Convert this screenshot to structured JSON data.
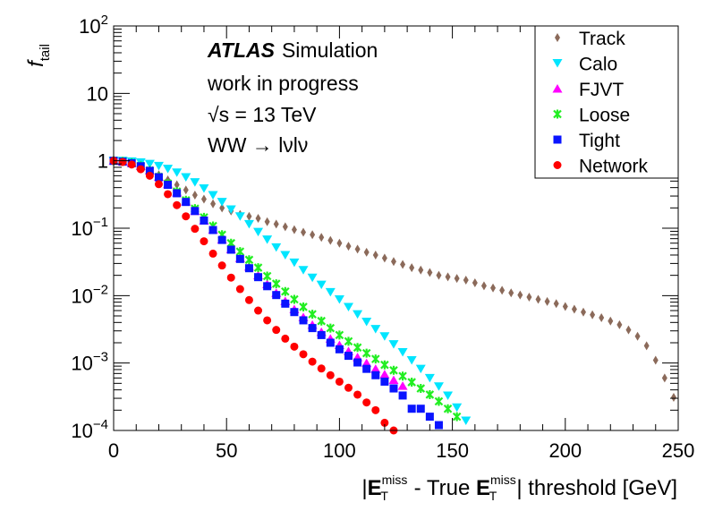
{
  "chart_data": {
    "type": "scatter",
    "y_scale": "log",
    "xlim": [
      0,
      250
    ],
    "ylim": [
      0.0001,
      100
    ],
    "x_ticks": [
      "0",
      "50",
      "100",
      "150",
      "200",
      "250"
    ],
    "y_ticks": [
      {
        "base": "10",
        "exp": "−4"
      },
      {
        "base": "10",
        "exp": "−3"
      },
      {
        "base": "10",
        "exp": "−2"
      },
      {
        "base": "10",
        "exp": "−1"
      },
      {
        "base": "1",
        "exp": ""
      },
      {
        "base": "10",
        "exp": ""
      },
      {
        "base": "10",
        "exp": "2"
      }
    ],
    "ylabel": {
      "main": "f",
      "sub": "tail"
    },
    "xlabel": {
      "bar": "|",
      "E": "E",
      "sub": "T",
      "sup": "miss",
      "mid": " - True ",
      "tail": "| threshold [GeV]"
    },
    "annotations": {
      "atlas": "ATLAS",
      "simulation": "Simulation",
      "line2": "work in progress",
      "sqrt": "√s",
      "energy": " = 13 TeV",
      "process": "WW → lνlν"
    },
    "series": [
      {
        "name": "Track",
        "marker": "diamond",
        "color": "#8b6a5a",
        "points": [
          [
            0,
            1.0
          ],
          [
            4,
            0.98
          ],
          [
            8,
            0.93
          ],
          [
            12,
            0.84
          ],
          [
            16,
            0.73
          ],
          [
            20,
            0.62
          ],
          [
            24,
            0.52
          ],
          [
            28,
            0.44
          ],
          [
            32,
            0.37
          ],
          [
            36,
            0.31
          ],
          [
            40,
            0.27
          ],
          [
            44,
            0.23
          ],
          [
            48,
            0.2
          ],
          [
            52,
            0.18
          ],
          [
            56,
            0.16
          ],
          [
            60,
            0.15
          ],
          [
            64,
            0.14
          ],
          [
            68,
            0.125
          ],
          [
            72,
            0.115
          ],
          [
            76,
            0.105
          ],
          [
            80,
            0.095
          ],
          [
            84,
            0.087
          ],
          [
            88,
            0.08
          ],
          [
            92,
            0.073
          ],
          [
            96,
            0.066
          ],
          [
            100,
            0.06
          ],
          [
            104,
            0.054
          ],
          [
            108,
            0.049
          ],
          [
            112,
            0.044
          ],
          [
            116,
            0.04
          ],
          [
            120,
            0.036
          ],
          [
            124,
            0.032
          ],
          [
            128,
            0.029
          ],
          [
            132,
            0.026
          ],
          [
            136,
            0.024
          ],
          [
            140,
            0.022
          ],
          [
            144,
            0.02
          ],
          [
            148,
            0.019
          ],
          [
            152,
            0.018
          ],
          [
            156,
            0.017
          ],
          [
            160,
            0.0155
          ],
          [
            164,
            0.014
          ],
          [
            168,
            0.013
          ],
          [
            172,
            0.012
          ],
          [
            176,
            0.011
          ],
          [
            180,
            0.0102
          ],
          [
            184,
            0.0095
          ],
          [
            188,
            0.0088
          ],
          [
            192,
            0.0082
          ],
          [
            196,
            0.0076
          ],
          [
            200,
            0.0069
          ],
          [
            204,
            0.0063
          ],
          [
            208,
            0.0057
          ],
          [
            212,
            0.0052
          ],
          [
            216,
            0.0047
          ],
          [
            220,
            0.0042
          ],
          [
            224,
            0.0037
          ],
          [
            228,
            0.0031
          ],
          [
            232,
            0.0025
          ],
          [
            236,
            0.0018
          ],
          [
            240,
            0.0011
          ],
          [
            244,
            0.0006
          ],
          [
            248,
            0.00031
          ],
          [
            252,
            0.00018
          ]
        ]
      },
      {
        "name": "Calo",
        "marker": "triangle-down",
        "color": "#00e5ff",
        "points": [
          [
            0,
            1.0
          ],
          [
            4,
            1.0
          ],
          [
            8,
            0.98
          ],
          [
            12,
            0.95
          ],
          [
            16,
            0.9
          ],
          [
            20,
            0.84
          ],
          [
            24,
            0.76
          ],
          [
            28,
            0.67
          ],
          [
            32,
            0.57
          ],
          [
            36,
            0.48
          ],
          [
            40,
            0.39
          ],
          [
            44,
            0.31
          ],
          [
            48,
            0.245
          ],
          [
            52,
            0.19
          ],
          [
            56,
            0.15
          ],
          [
            60,
            0.115
          ],
          [
            64,
            0.088
          ],
          [
            68,
            0.068
          ],
          [
            72,
            0.052
          ],
          [
            76,
            0.04
          ],
          [
            80,
            0.031
          ],
          [
            84,
            0.024
          ],
          [
            88,
            0.0185
          ],
          [
            92,
            0.0145
          ],
          [
            96,
            0.0113
          ],
          [
            100,
            0.0088
          ],
          [
            104,
            0.0068
          ],
          [
            108,
            0.0053
          ],
          [
            112,
            0.0041
          ],
          [
            116,
            0.0032
          ],
          [
            120,
            0.0025
          ],
          [
            124,
            0.0019
          ],
          [
            128,
            0.00145
          ],
          [
            132,
            0.0011
          ],
          [
            136,
            0.00082
          ],
          [
            140,
            0.0006
          ],
          [
            144,
            0.00045
          ],
          [
            148,
            0.00033
          ],
          [
            152,
            0.00022
          ],
          [
            156,
            0.00014
          ]
        ]
      },
      {
        "name": "FJVT",
        "marker": "triangle-up",
        "color": "#ff00ff",
        "points": [
          [
            0,
            1.0
          ],
          [
            4,
            0.98
          ],
          [
            8,
            0.93
          ],
          [
            12,
            0.84
          ],
          [
            16,
            0.72
          ],
          [
            20,
            0.58
          ],
          [
            24,
            0.45
          ],
          [
            28,
            0.34
          ],
          [
            32,
            0.25
          ],
          [
            36,
            0.18
          ],
          [
            40,
            0.13
          ],
          [
            44,
            0.095
          ],
          [
            48,
            0.068
          ],
          [
            52,
            0.049
          ],
          [
            56,
            0.036
          ],
          [
            60,
            0.027
          ],
          [
            64,
            0.02
          ],
          [
            68,
            0.0148
          ],
          [
            72,
            0.011
          ],
          [
            76,
            0.0083
          ],
          [
            80,
            0.0063
          ],
          [
            84,
            0.0048
          ],
          [
            88,
            0.0037
          ],
          [
            92,
            0.0029
          ],
          [
            96,
            0.0023
          ],
          [
            100,
            0.00185
          ],
          [
            104,
            0.0015
          ],
          [
            108,
            0.00122
          ],
          [
            112,
            0.001
          ],
          [
            116,
            0.00082
          ],
          [
            120,
            0.00068
          ],
          [
            124,
            0.00056
          ],
          [
            128,
            0.00046
          ]
        ]
      },
      {
        "name": "Loose",
        "marker": "star",
        "color": "#22ee22",
        "points": [
          [
            0,
            1.0
          ],
          [
            4,
            0.98
          ],
          [
            8,
            0.93
          ],
          [
            12,
            0.84
          ],
          [
            16,
            0.72
          ],
          [
            20,
            0.58
          ],
          [
            24,
            0.46
          ],
          [
            28,
            0.35
          ],
          [
            32,
            0.26
          ],
          [
            36,
            0.195
          ],
          [
            40,
            0.145
          ],
          [
            44,
            0.108
          ],
          [
            48,
            0.08
          ],
          [
            52,
            0.06
          ],
          [
            56,
            0.045
          ],
          [
            60,
            0.034
          ],
          [
            64,
            0.026
          ],
          [
            68,
            0.0195
          ],
          [
            72,
            0.015
          ],
          [
            76,
            0.0115
          ],
          [
            80,
            0.0088
          ],
          [
            84,
            0.0068
          ],
          [
            88,
            0.0053
          ],
          [
            92,
            0.0042
          ],
          [
            96,
            0.0033
          ],
          [
            100,
            0.0026
          ],
          [
            104,
            0.0021
          ],
          [
            108,
            0.0017
          ],
          [
            112,
            0.0014
          ],
          [
            116,
            0.00115
          ],
          [
            120,
            0.00094
          ],
          [
            124,
            0.00078
          ],
          [
            128,
            0.00064
          ],
          [
            132,
            0.00052
          ],
          [
            136,
            0.00042
          ],
          [
            140,
            0.00034
          ],
          [
            144,
            0.00027
          ],
          [
            148,
            0.00021
          ],
          [
            152,
            0.00016
          ]
        ]
      },
      {
        "name": "Tight",
        "marker": "square",
        "color": "#0a14ff",
        "points": [
          [
            0,
            1.0
          ],
          [
            4,
            0.97
          ],
          [
            8,
            0.92
          ],
          [
            12,
            0.83
          ],
          [
            16,
            0.71
          ],
          [
            20,
            0.57
          ],
          [
            24,
            0.44
          ],
          [
            28,
            0.33
          ],
          [
            32,
            0.245
          ],
          [
            36,
            0.18
          ],
          [
            40,
            0.13
          ],
          [
            44,
            0.094
          ],
          [
            48,
            0.067
          ],
          [
            52,
            0.048
          ],
          [
            56,
            0.035
          ],
          [
            60,
            0.0255
          ],
          [
            64,
            0.0188
          ],
          [
            68,
            0.0138
          ],
          [
            72,
            0.0102
          ],
          [
            76,
            0.0076
          ],
          [
            80,
            0.0057
          ],
          [
            84,
            0.0043
          ],
          [
            88,
            0.0033
          ],
          [
            92,
            0.0026
          ],
          [
            96,
            0.002
          ],
          [
            100,
            0.0016
          ],
          [
            104,
            0.00128
          ],
          [
            108,
            0.00102
          ],
          [
            112,
            0.00082
          ],
          [
            116,
            0.00066
          ],
          [
            120,
            0.00053
          ],
          [
            124,
            0.00042
          ],
          [
            128,
            0.00033
          ],
          [
            132,
            0.00021
          ],
          [
            136,
            0.00021
          ],
          [
            140,
            0.00016
          ],
          [
            144,
            0.00012
          ]
        ]
      },
      {
        "name": "Network",
        "marker": "circle",
        "color": "#ff0000",
        "points": [
          [
            0,
            1.0
          ],
          [
            4,
            0.96
          ],
          [
            8,
            0.88
          ],
          [
            12,
            0.75
          ],
          [
            16,
            0.6
          ],
          [
            20,
            0.45
          ],
          [
            24,
            0.32
          ],
          [
            28,
            0.22
          ],
          [
            32,
            0.15
          ],
          [
            36,
            0.098
          ],
          [
            40,
            0.064
          ],
          [
            44,
            0.042
          ],
          [
            48,
            0.028
          ],
          [
            52,
            0.0185
          ],
          [
            56,
            0.0125
          ],
          [
            60,
            0.0086
          ],
          [
            64,
            0.006
          ],
          [
            68,
            0.0043
          ],
          [
            72,
            0.0031
          ],
          [
            76,
            0.0023
          ],
          [
            80,
            0.00175
          ],
          [
            84,
            0.00135
          ],
          [
            88,
            0.00105
          ],
          [
            92,
            0.00083
          ],
          [
            96,
            0.00066
          ],
          [
            100,
            0.00053
          ],
          [
            104,
            0.00043
          ],
          [
            108,
            0.00034
          ],
          [
            112,
            0.00026
          ],
          [
            116,
            0.0002
          ],
          [
            120,
            0.00013
          ],
          [
            124,
            0.0001
          ]
        ]
      }
    ]
  }
}
